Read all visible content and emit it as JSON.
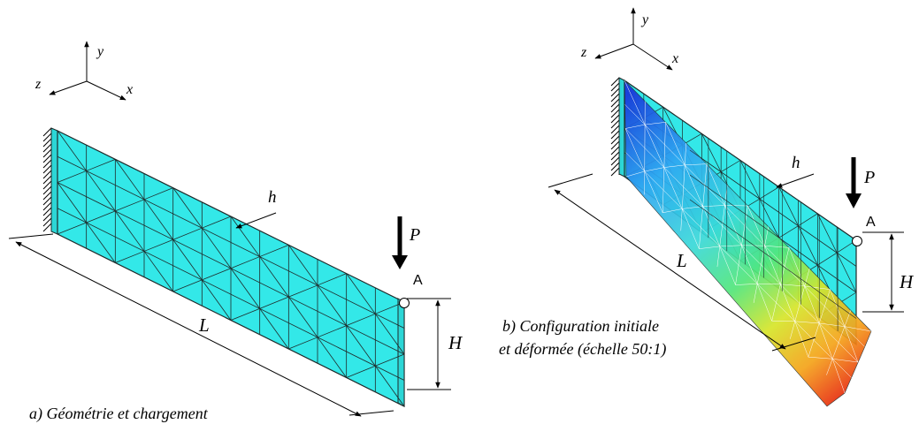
{
  "panel_a": {
    "caption": "a) Géométrie et chargement",
    "axes": {
      "x": "x",
      "y": "y",
      "z": "z"
    },
    "labels": {
      "length": "L",
      "height": "H",
      "thickness": "h",
      "load": "P",
      "point": "A"
    }
  },
  "panel_b": {
    "caption_line1": "b) Configuration initiale",
    "caption_line2": "et déformée (échelle 50:1)",
    "axes": {
      "x": "x",
      "y": "y",
      "z": "z"
    },
    "labels": {
      "length": "L",
      "height": "H",
      "thickness": "h",
      "load": "P",
      "point": "A"
    }
  },
  "colors": {
    "mesh_fill": "#33e8e8",
    "mesh_side": "#2cd6d6",
    "deformed_gradient": [
      "#1733d9",
      "#2fa6f2",
      "#39d9d9",
      "#53e67a",
      "#d6e62a",
      "#f5a31a",
      "#e61e0e"
    ]
  }
}
